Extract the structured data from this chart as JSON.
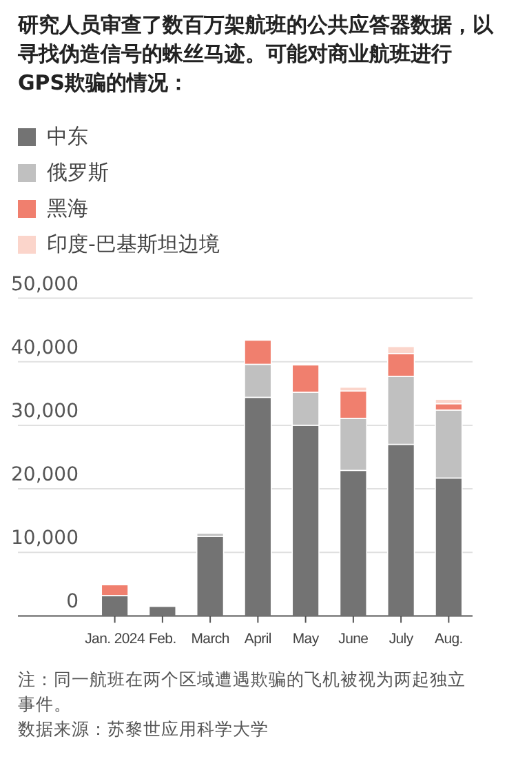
{
  "chart_data": {
    "type": "bar",
    "stacked": true,
    "title": "研究人员审查了数百万架航班的公共应答器数据，以寻找伪造信号的蛛丝马迹。可能对商业航班进行GPS欺骗的情况：",
    "categories": [
      "Jan. 2024",
      "Feb.",
      "March",
      "April",
      "May",
      "June",
      "July",
      "Aug."
    ],
    "series": [
      {
        "name": "中东",
        "color": "#737373",
        "values": [
          3200,
          1500,
          12500,
          34400,
          30000,
          22900,
          27000,
          21700
        ]
      },
      {
        "name": "俄罗斯",
        "color": "#c0c0c0",
        "values": [
          0,
          0,
          500,
          5200,
          5200,
          8200,
          10700,
          10700
        ]
      },
      {
        "name": "黑海",
        "color": "#f07f6e",
        "values": [
          1700,
          0,
          0,
          3800,
          4300,
          4300,
          3600,
          1000
        ]
      },
      {
        "name": "印度-巴基斯坦边境",
        "color": "#fbd5cb",
        "values": [
          0,
          0,
          0,
          0,
          0,
          600,
          1100,
          700
        ]
      }
    ],
    "ylim": [
      0,
      50000
    ],
    "yticks": [
      0,
      {
        "value": 10000,
        "label": "10,000"
      },
      {
        "value": 20000,
        "label": "20,000"
      },
      {
        "value": 30000,
        "label": "30,000"
      },
      {
        "value": 40000,
        "label": "40,000"
      },
      {
        "value": 50000,
        "label": "50,000"
      }
    ],
    "grid": "y",
    "legend": "top",
    "annotations": [
      "注：同一航班在两个区域遭遇欺骗的飞机被视为两起独立事件。",
      "数据来源：苏黎世应用科学大学"
    ]
  }
}
